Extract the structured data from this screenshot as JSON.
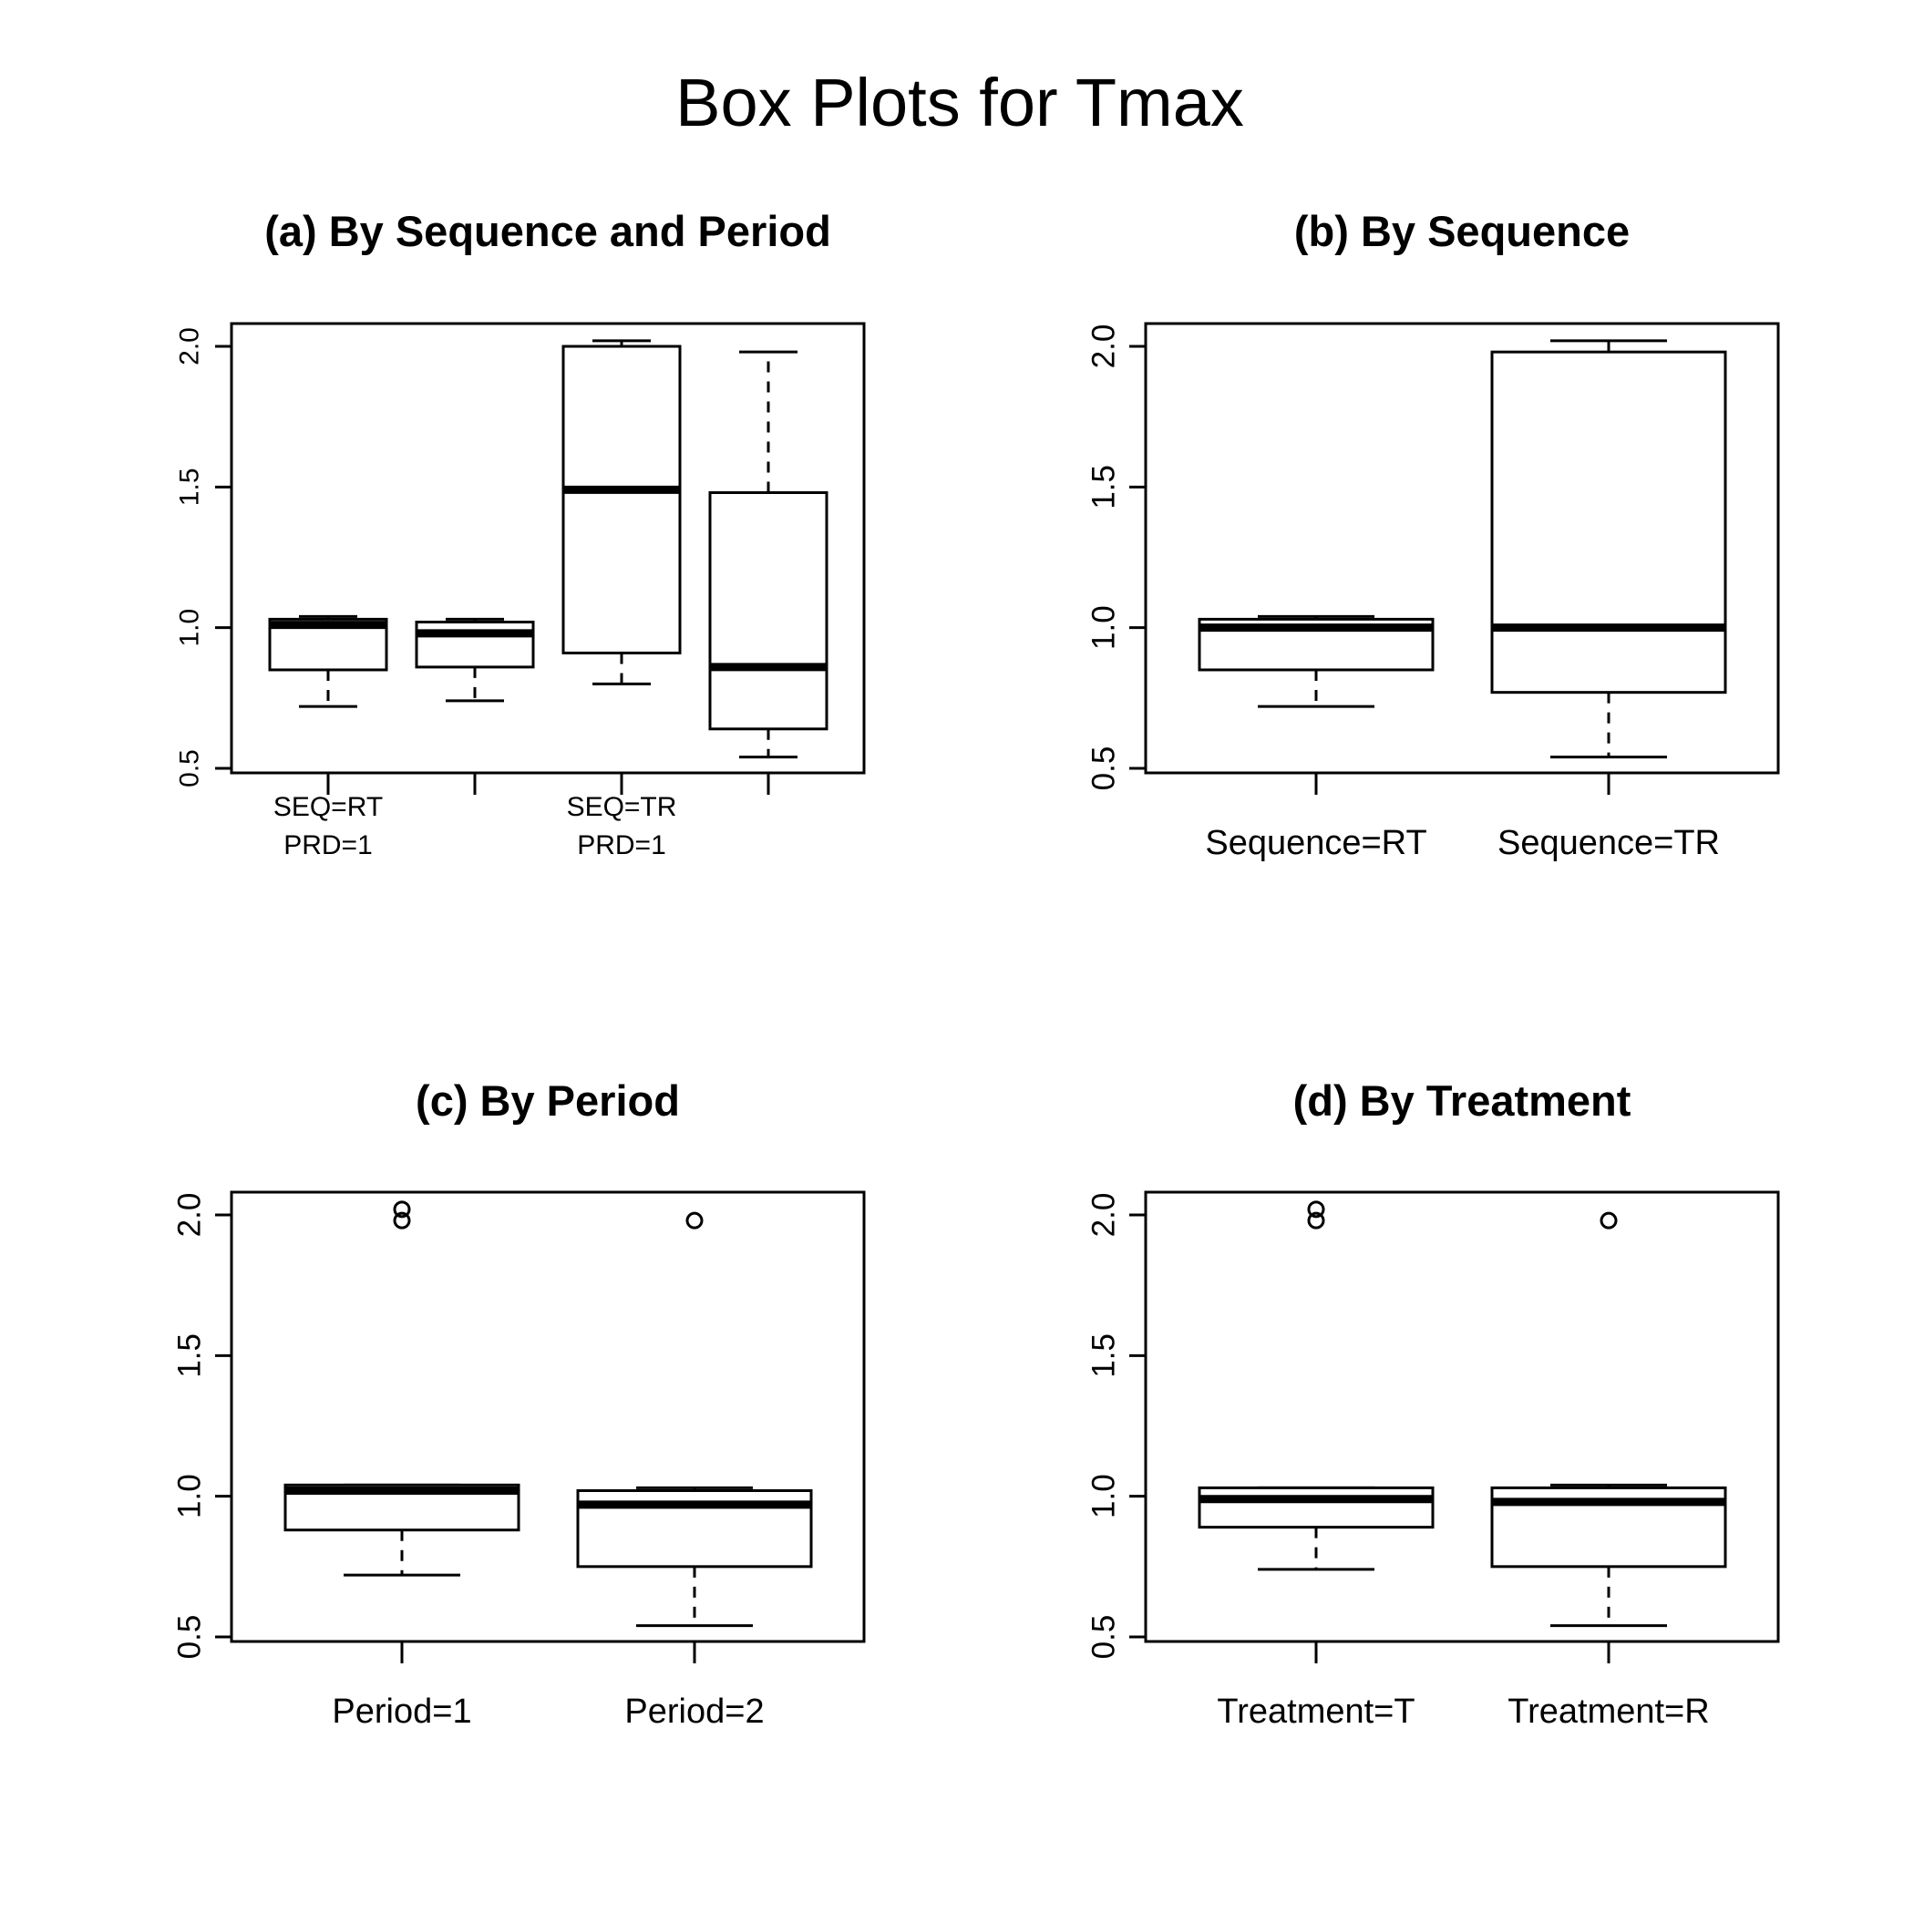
{
  "figure": {
    "title": "Box Plots for Tmax"
  },
  "chart_data": [
    {
      "type": "box",
      "title": "(a) By Sequence and Period",
      "ylim": [
        0.5,
        2.0
      ],
      "yticks": [
        "0.5",
        "1.0",
        "1.5",
        "2.0"
      ],
      "categories": [
        "SEQ=RT\nPRD=1",
        "",
        "SEQ=TR\nPRD=1",
        ""
      ],
      "boxes": [
        {
          "whisker_low": 0.72,
          "q1": 0.85,
          "median": 1.01,
          "q3": 1.03,
          "whisker_high": 1.04,
          "outliers": []
        },
        {
          "whisker_low": 0.74,
          "q1": 0.86,
          "median": 0.98,
          "q3": 1.02,
          "whisker_high": 1.03,
          "outliers": []
        },
        {
          "whisker_low": 0.8,
          "q1": 0.91,
          "median": 1.49,
          "q3": 2.0,
          "whisker_high": 2.02,
          "outliers": []
        },
        {
          "whisker_low": 0.54,
          "q1": 0.64,
          "median": 0.86,
          "q3": 1.48,
          "whisker_high": 1.98,
          "outliers": []
        }
      ]
    },
    {
      "type": "box",
      "title": "(b) By Sequence",
      "ylim": [
        0.5,
        2.0
      ],
      "yticks": [
        "0.5",
        "1.0",
        "1.5",
        "2.0"
      ],
      "categories": [
        "Sequence=RT",
        "Sequence=TR"
      ],
      "boxes": [
        {
          "whisker_low": 0.72,
          "q1": 0.85,
          "median": 1.0,
          "q3": 1.03,
          "whisker_high": 1.04,
          "outliers": []
        },
        {
          "whisker_low": 0.54,
          "q1": 0.77,
          "median": 1.0,
          "q3": 1.98,
          "whisker_high": 2.02,
          "outliers": []
        }
      ]
    },
    {
      "type": "box",
      "title": "(c) By Period",
      "ylim": [
        0.5,
        2.0
      ],
      "yticks": [
        "0.5",
        "1.0",
        "1.5",
        "2.0"
      ],
      "categories": [
        "Period=1",
        "Period=2"
      ],
      "boxes": [
        {
          "whisker_low": 0.72,
          "q1": 0.88,
          "median": 1.02,
          "q3": 1.04,
          "whisker_high": 1.04,
          "outliers": [
            1.98,
            2.02
          ]
        },
        {
          "whisker_low": 0.54,
          "q1": 0.75,
          "median": 0.97,
          "q3": 1.02,
          "whisker_high": 1.03,
          "outliers": [
            1.98
          ]
        }
      ]
    },
    {
      "type": "box",
      "title": "(d) By Treatment",
      "ylim": [
        0.5,
        2.0
      ],
      "yticks": [
        "0.5",
        "1.0",
        "1.5",
        "2.0"
      ],
      "categories": [
        "Treatment=T",
        "Treatment=R"
      ],
      "boxes": [
        {
          "whisker_low": 0.74,
          "q1": 0.89,
          "median": 0.99,
          "q3": 1.03,
          "whisker_high": 1.03,
          "outliers": [
            1.98,
            2.02
          ]
        },
        {
          "whisker_low": 0.54,
          "q1": 0.75,
          "median": 0.98,
          "q3": 1.03,
          "whisker_high": 1.04,
          "outliers": [
            1.98
          ]
        }
      ]
    }
  ]
}
